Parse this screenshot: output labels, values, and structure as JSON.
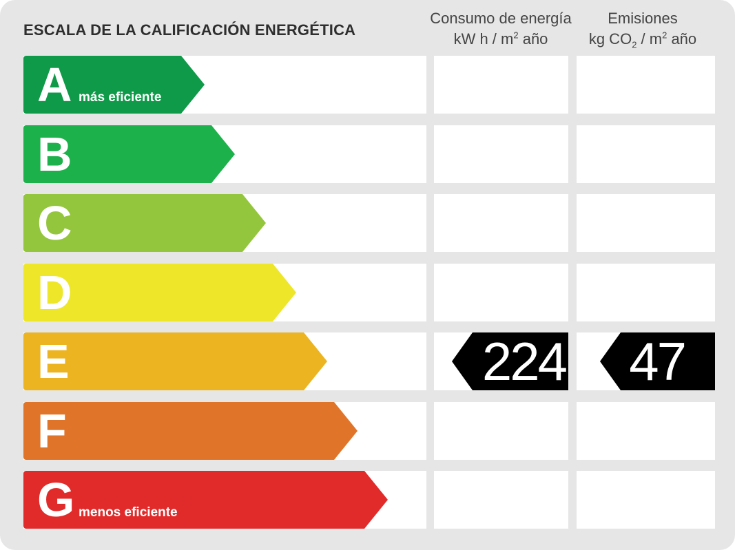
{
  "title": "ESCALA DE LA CALIFICACIÓN ENERGÉTICA",
  "columns": {
    "energy": {
      "line1": "Consumo de energía",
      "unit_pre": "kW h  / m",
      "unit_sup": "2",
      "unit_post": " año"
    },
    "emissions": {
      "line1": "Emisiones",
      "unit_pre": "kg CO",
      "unit_sub": "2",
      "unit_mid": "  / m",
      "unit_sup": "2",
      "unit_post": " año"
    }
  },
  "ratings": [
    {
      "letter": "A",
      "color": "#0e9a48",
      "caption": "más eficiente"
    },
    {
      "letter": "B",
      "color": "#1db14b",
      "caption": ""
    },
    {
      "letter": "C",
      "color": "#94c63d",
      "caption": ""
    },
    {
      "letter": "D",
      "color": "#ede629",
      "caption": ""
    },
    {
      "letter": "E",
      "color": "#ecb420",
      "caption": ""
    },
    {
      "letter": "F",
      "color": "#e0752a",
      "caption": ""
    },
    {
      "letter": "G",
      "color": "#e12b2b",
      "caption": "menos eficiente"
    }
  ],
  "result": {
    "rating": "E",
    "energy_value": "224",
    "emissions_value": "47"
  }
}
